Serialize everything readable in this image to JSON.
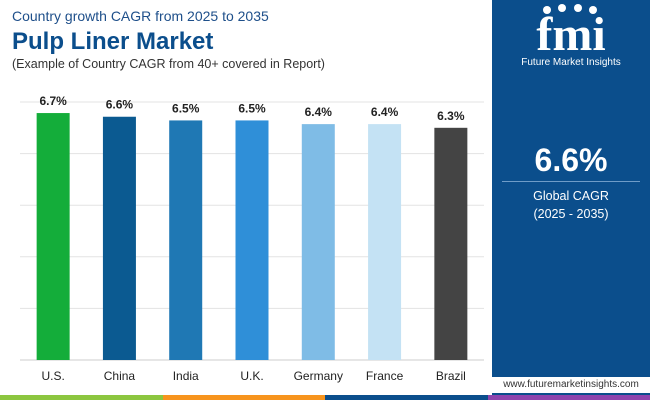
{
  "header": {
    "subtitle": "Country growth CAGR from 2025 to 2035",
    "title": "Pulp Liner Market",
    "note": "(Example of Country CAGR from 40+ covered in Report)"
  },
  "sidebar": {
    "logo_letters": "fmi",
    "logo_text": "Future Market Insights",
    "stat_value": "6.6%",
    "stat_label": "Global CAGR",
    "stat_range": "(2025 - 2035)",
    "website": "www.futuremarketinsights.com"
  },
  "colors": {
    "brand": "#0b4e8c",
    "footer": [
      "#8cc63f",
      "#f7941d",
      "#0b4e8c",
      "#8e44ad"
    ]
  },
  "chart_data": {
    "type": "bar",
    "title": "Pulp Liner Market",
    "categories": [
      "U.S.",
      "China",
      "India",
      "U.K.",
      "Germany",
      "France",
      "Brazil"
    ],
    "values": [
      6.7,
      6.6,
      6.5,
      6.5,
      6.4,
      6.4,
      6.3
    ],
    "labels": [
      "6.7%",
      "6.6%",
      "6.5%",
      "6.5%",
      "6.4%",
      "6.4%",
      "6.3%"
    ],
    "colors": [
      "#14ad3a",
      "#0b5a91",
      "#1f78b4",
      "#2f8fd8",
      "#7fbce6",
      "#c4e2f4",
      "#444444"
    ],
    "xlabel": "",
    "ylabel": "",
    "ylim": [
      0,
      7.0
    ],
    "grid": true
  }
}
